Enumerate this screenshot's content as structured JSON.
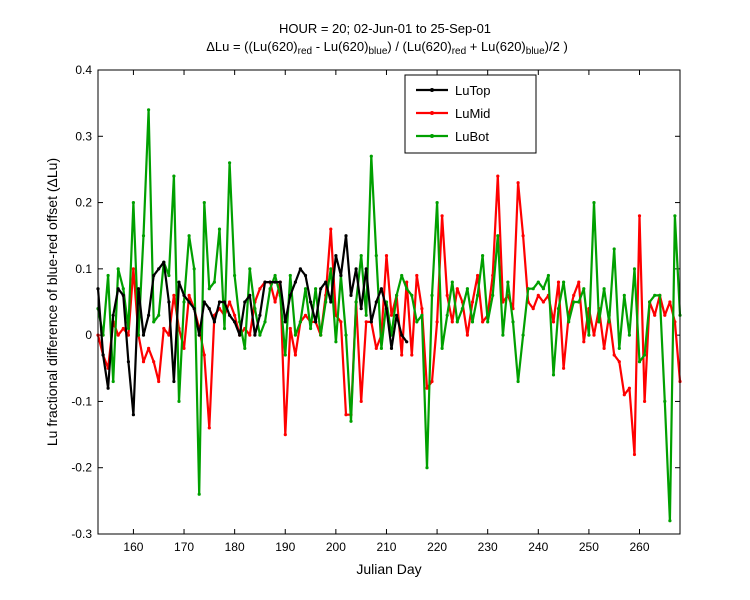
{
  "chart_data": {
    "type": "line",
    "title_line1": "HOUR = 20; 02-Jun-01 to 25-Sep-01",
    "title_line2": {
      "p1": "ΔLu = ((Lu(620)",
      "s1": "red",
      "p2": " - Lu(620)",
      "s2": "blue",
      "p3": ") / (Lu(620)",
      "s3": "red",
      "p4": " + Lu(620)",
      "s4": "blue",
      "p5": ")/2  )"
    },
    "xlabel": "Julian Day",
    "ylabel": "Lu fractional difference of blue-red offset (ΔLu)",
    "xlim": [
      153,
      268
    ],
    "ylim": [
      -0.3,
      0.4
    ],
    "xticks": [
      160,
      170,
      180,
      190,
      200,
      210,
      220,
      230,
      240,
      250,
      260
    ],
    "yticks": [
      -0.3,
      -0.2,
      -0.1,
      0,
      0.1,
      0.2,
      0.3,
      0.4
    ],
    "ytick_labels": [
      "-0.3",
      "-0.2",
      "-0.1",
      "0",
      "0.1",
      "0.2",
      "0.3",
      "0.4"
    ],
    "legend_position": "top-center",
    "series": [
      {
        "name": "LuTop",
        "color": "#000000",
        "x": [
          153,
          154,
          155,
          156,
          157,
          158,
          159,
          160,
          161,
          162,
          163,
          164,
          165,
          166,
          167,
          168,
          169,
          170,
          171,
          172,
          173,
          174,
          175,
          176,
          177,
          178,
          179,
          180,
          181,
          182,
          183,
          184,
          185,
          186,
          187,
          188,
          189,
          190,
          191,
          192,
          193,
          194,
          195,
          196,
          197,
          198,
          199,
          200,
          201,
          202,
          203,
          204,
          205,
          206,
          207,
          208,
          209,
          210,
          211,
          212,
          213,
          214
        ],
        "y": [
          0.07,
          -0.03,
          -0.08,
          0.03,
          0.07,
          0.06,
          -0.04,
          -0.12,
          0.07,
          0.0,
          0.03,
          0.09,
          0.1,
          0.11,
          0.05,
          -0.07,
          0.08,
          0.06,
          0.05,
          0.04,
          0.0,
          0.05,
          0.04,
          0.02,
          0.05,
          0.05,
          0.03,
          0.02,
          0.0,
          0.05,
          0.06,
          0.0,
          0.03,
          0.08,
          0.08,
          0.08,
          0.08,
          0.02,
          0.06,
          0.08,
          0.1,
          0.09,
          0.05,
          0.02,
          0.07,
          0.08,
          0.05,
          0.12,
          0.09,
          0.15,
          0.06,
          0.1,
          0.04,
          0.1,
          0.02,
          0.05,
          0.07,
          0.04,
          -0.02,
          0.03,
          0.0,
          -0.01
        ]
      },
      {
        "name": "LuMid",
        "color": "#ff0000",
        "x": [
          153,
          154,
          155,
          156,
          157,
          158,
          159,
          160,
          161,
          162,
          163,
          164,
          165,
          166,
          167,
          168,
          169,
          170,
          171,
          172,
          173,
          174,
          175,
          176,
          177,
          178,
          179,
          180,
          181,
          182,
          183,
          184,
          185,
          186,
          187,
          188,
          189,
          190,
          191,
          192,
          193,
          194,
          195,
          196,
          197,
          198,
          199,
          200,
          201,
          202,
          203,
          204,
          205,
          206,
          207,
          208,
          209,
          210,
          211,
          212,
          213,
          214,
          215,
          216,
          217,
          218,
          219,
          220,
          221,
          222,
          223,
          224,
          225,
          226,
          227,
          228,
          229,
          230,
          231,
          232,
          233,
          234,
          235,
          236,
          237,
          238,
          239,
          240,
          241,
          242,
          243,
          244,
          245,
          246,
          247,
          248,
          249,
          250,
          251,
          252,
          253,
          254,
          255,
          256,
          257,
          258,
          259,
          260,
          261,
          262,
          263,
          264,
          265,
          266,
          267,
          268
        ],
        "y": [
          0.0,
          -0.03,
          -0.05,
          0.02,
          0.0,
          0.01,
          0.0,
          0.1,
          0.0,
          -0.04,
          -0.02,
          -0.04,
          -0.07,
          0.01,
          0.0,
          0.06,
          0.01,
          -0.02,
          0.06,
          0.04,
          0.01,
          -0.03,
          -0.14,
          0.03,
          0.04,
          0.03,
          0.05,
          0.03,
          0.0,
          0.01,
          0.0,
          0.05,
          0.07,
          0.08,
          0.08,
          0.05,
          0.08,
          -0.15,
          0.01,
          -0.03,
          0.02,
          0.03,
          0.02,
          0.02,
          0.0,
          0.06,
          0.16,
          0.03,
          0.02,
          -0.12,
          -0.12,
          0.05,
          -0.1,
          0.02,
          0.02,
          -0.02,
          0.0,
          0.12,
          0.03,
          0.06,
          -0.03,
          0.08,
          -0.03,
          0.09,
          0.04,
          -0.08,
          -0.07,
          0.02,
          0.18,
          0.06,
          0.02,
          0.07,
          0.05,
          0.0,
          0.05,
          0.09,
          0.02,
          0.03,
          0.09,
          0.24,
          0.05,
          0.06,
          0.04,
          0.23,
          0.15,
          0.05,
          0.04,
          0.06,
          0.05,
          0.06,
          0.02,
          0.08,
          -0.05,
          0.03,
          0.06,
          0.08,
          -0.01,
          0.04,
          0.0,
          0.04,
          -0.02,
          0.03,
          -0.03,
          -0.04,
          -0.09,
          -0.08,
          -0.18,
          0.18,
          -0.1,
          0.05,
          0.03,
          0.06,
          0.03,
          0.05,
          0.02,
          -0.07
        ]
      },
      {
        "name": "LuBot",
        "color": "#00a000",
        "x": [
          153,
          154,
          155,
          156,
          157,
          158,
          159,
          160,
          161,
          162,
          163,
          164,
          165,
          166,
          167,
          168,
          169,
          170,
          171,
          172,
          173,
          174,
          175,
          176,
          177,
          178,
          179,
          180,
          181,
          182,
          183,
          184,
          185,
          186,
          187,
          188,
          189,
          190,
          191,
          192,
          193,
          194,
          195,
          196,
          197,
          198,
          199,
          200,
          201,
          202,
          203,
          204,
          205,
          206,
          207,
          208,
          209,
          210,
          211,
          212,
          213,
          214,
          215,
          216,
          217,
          218,
          219,
          220,
          221,
          222,
          223,
          224,
          225,
          226,
          227,
          228,
          229,
          230,
          231,
          232,
          233,
          234,
          235,
          236,
          237,
          238,
          239,
          240,
          241,
          242,
          243,
          244,
          245,
          246,
          247,
          248,
          249,
          250,
          251,
          252,
          253,
          254,
          255,
          256,
          257,
          258,
          259,
          260,
          261,
          262,
          263,
          264,
          265,
          266,
          267,
          268
        ],
        "y": [
          0.04,
          0.0,
          0.09,
          -0.07,
          0.1,
          0.07,
          0.01,
          0.2,
          0.0,
          0.15,
          0.34,
          0.02,
          0.03,
          0.11,
          0.09,
          0.24,
          -0.1,
          0.05,
          0.15,
          0.1,
          -0.24,
          0.2,
          0.07,
          0.08,
          0.16,
          0.01,
          0.26,
          0.09,
          0.02,
          -0.02,
          0.1,
          0.04,
          0.0,
          0.02,
          0.07,
          0.09,
          0.06,
          -0.03,
          0.09,
          0.0,
          0.02,
          0.07,
          0.01,
          0.07,
          0.0,
          0.05,
          0.1,
          -0.01,
          0.09,
          0.0,
          -0.13,
          0.05,
          0.12,
          0.03,
          0.27,
          0.12,
          -0.02,
          0.05,
          0.0,
          0.06,
          0.09,
          0.07,
          0.06,
          0.02,
          0.03,
          -0.2,
          0.06,
          0.2,
          -0.02,
          0.03,
          0.08,
          0.02,
          0.04,
          0.07,
          0.02,
          0.06,
          0.12,
          0.02,
          0.06,
          0.15,
          0.0,
          0.08,
          0.02,
          -0.07,
          0.0,
          0.07,
          0.07,
          0.08,
          0.07,
          0.09,
          -0.06,
          0.04,
          0.08,
          0.02,
          0.05,
          0.05,
          0.07,
          0.0,
          0.2,
          0.02,
          0.07,
          0.02,
          0.13,
          -0.02,
          0.06,
          0.0,
          0.1,
          -0.04,
          -0.03,
          0.05,
          0.06,
          0.06,
          -0.1,
          -0.28,
          0.18,
          0.03
        ]
      }
    ]
  }
}
